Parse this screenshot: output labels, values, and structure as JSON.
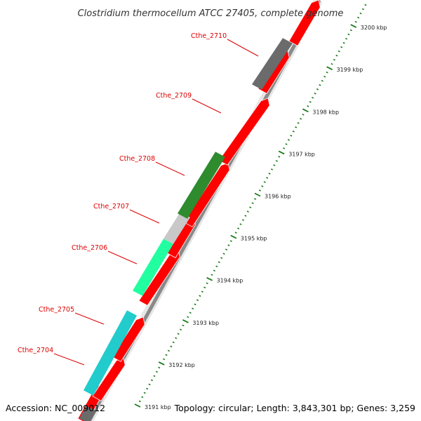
{
  "title": "Clostridium thermocellum ATCC 27405, complete genome",
  "footer": {
    "accession": "Accession: NC_009012",
    "topology": "Topology: circular; Length: 3,843,301 bp; Genes: 3,259"
  },
  "colors": {
    "background": "#ffffff",
    "backbone": "#8a8a8a",
    "cds": "#ff0000",
    "tick": "#1a7a1a",
    "label": "#dd0000",
    "leader_line": "#dd0000"
  },
  "scale": {
    "unit": "kbp",
    "ticks": [
      {
        "value": 3191,
        "label": "3191 kbp"
      },
      {
        "value": 3192,
        "label": "3192 kbp"
      },
      {
        "value": 3193,
        "label": "3193 kbp"
      },
      {
        "value": 3194,
        "label": "3194 kbp"
      },
      {
        "value": 3195,
        "label": "3195 kbp"
      },
      {
        "value": 3196,
        "label": "3196 kbp"
      },
      {
        "value": 3197,
        "label": "3197 kbp"
      },
      {
        "value": 3198,
        "label": "3198 kbp"
      },
      {
        "value": 3199,
        "label": "3199 kbp"
      },
      {
        "value": 3200,
        "label": "3200 kbp"
      }
    ]
  },
  "features": [
    {
      "name": "Cthe_2704",
      "color": "#6b6b6b"
    },
    {
      "name": "Cthe_2705",
      "color": "#22cccc"
    },
    {
      "name": "Cthe_2706",
      "color": "#22ffa0"
    },
    {
      "name": "Cthe_2707",
      "color": "#c8c8c8"
    },
    {
      "name": "Cthe_2708",
      "color": "#2e8b2e"
    },
    {
      "name": "Cthe_2709",
      "color": "#ff0000"
    },
    {
      "name": "Cthe_2710",
      "color": "#6b6b6b"
    }
  ]
}
